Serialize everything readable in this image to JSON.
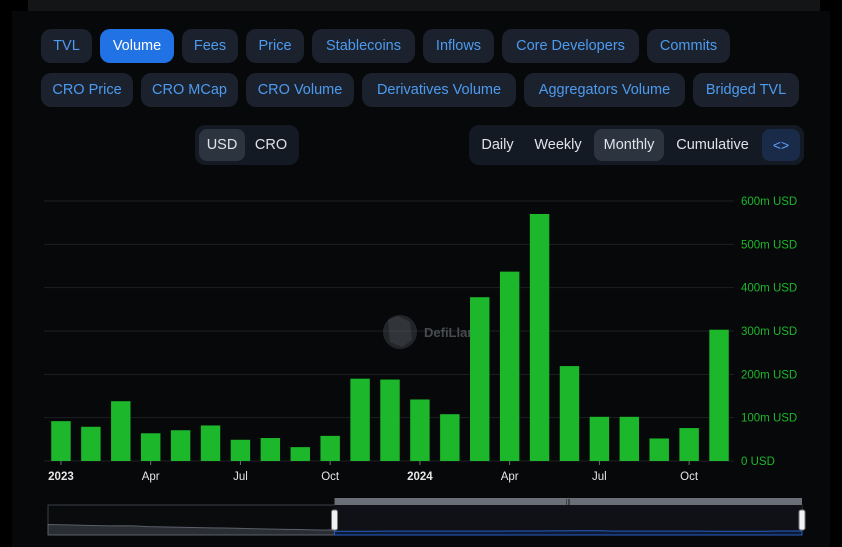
{
  "tabs_row1": [
    {
      "label": "TVL",
      "active": false
    },
    {
      "label": "Volume",
      "active": true
    },
    {
      "label": "Fees",
      "active": false
    },
    {
      "label": "Price",
      "active": false
    },
    {
      "label": "Stablecoins",
      "active": false
    },
    {
      "label": "Inflows",
      "active": false
    },
    {
      "label": "Core Developers",
      "active": false
    },
    {
      "label": "Commits",
      "active": false
    }
  ],
  "tabs_row2": [
    {
      "label": "CRO Price"
    },
    {
      "label": "CRO MCap"
    },
    {
      "label": "CRO Volume"
    },
    {
      "label": "Derivatives Volume"
    },
    {
      "label": "Aggregators Volume"
    },
    {
      "label": "Bridged TVL"
    }
  ],
  "denomination": {
    "options": [
      "USD",
      "CRO"
    ],
    "selected": "USD"
  },
  "period": {
    "options": [
      "Daily",
      "Weekly",
      "Monthly",
      "Cumulative"
    ],
    "selected": "Monthly",
    "embed_label": "<>"
  },
  "watermark": "DefiLlama",
  "colors": {
    "bar": "#1cb72b",
    "axis_text": "#1cb72b",
    "accent": "#2172e5",
    "slider_line": "#2a5cc4"
  },
  "chart_data": {
    "type": "bar",
    "unit": "USD",
    "categories": [
      "Jan 2023",
      "Feb 2023",
      "Mar 2023",
      "Apr 2023",
      "May 2023",
      "Jun 2023",
      "Jul 2023",
      "Aug 2023",
      "Sep 2023",
      "Oct 2023",
      "Nov 2023",
      "Dec 2023",
      "Jan 2024",
      "Feb 2024",
      "Mar 2024",
      "Apr 2024",
      "May 2024",
      "Jun 2024",
      "Jul 2024",
      "Aug 2024",
      "Sep 2024",
      "Oct 2024",
      "Nov 2024"
    ],
    "values": [
      92000000,
      79000000,
      138000000,
      64000000,
      71000000,
      82000000,
      49000000,
      53000000,
      32000000,
      58000000,
      190000000,
      188000000,
      142000000,
      108000000,
      378000000,
      437000000,
      570000000,
      219000000,
      102000000,
      102000000,
      52000000,
      76000000,
      303000000
    ],
    "x_tick_labels": [
      {
        "label": "2023",
        "index": 0,
        "bold": true
      },
      {
        "label": "Apr",
        "index": 3,
        "bold": false
      },
      {
        "label": "Jul",
        "index": 6,
        "bold": false
      },
      {
        "label": "Oct",
        "index": 9,
        "bold": false
      },
      {
        "label": "2024",
        "index": 12,
        "bold": true
      },
      {
        "label": "Apr",
        "index": 15,
        "bold": false
      },
      {
        "label": "Jul",
        "index": 18,
        "bold": false
      },
      {
        "label": "Oct",
        "index": 21,
        "bold": false
      }
    ],
    "y_ticks": [
      {
        "value": 0,
        "label": "0 USD"
      },
      {
        "value": 100000000,
        "label": "100m USD"
      },
      {
        "value": 200000000,
        "label": "200m USD"
      },
      {
        "value": 300000000,
        "label": "300m USD"
      },
      {
        "value": 400000000,
        "label": "400m USD"
      },
      {
        "value": 500000000,
        "label": "500m USD"
      },
      {
        "value": 600000000,
        "label": "600m USD"
      }
    ],
    "ylim": [
      0,
      600000000
    ],
    "grid": true,
    "y_axis_side": "right",
    "title": "",
    "xlabel": "",
    "ylabel": ""
  },
  "zoom_slider": {
    "start_fraction": 0.38,
    "end_fraction": 1.0
  }
}
